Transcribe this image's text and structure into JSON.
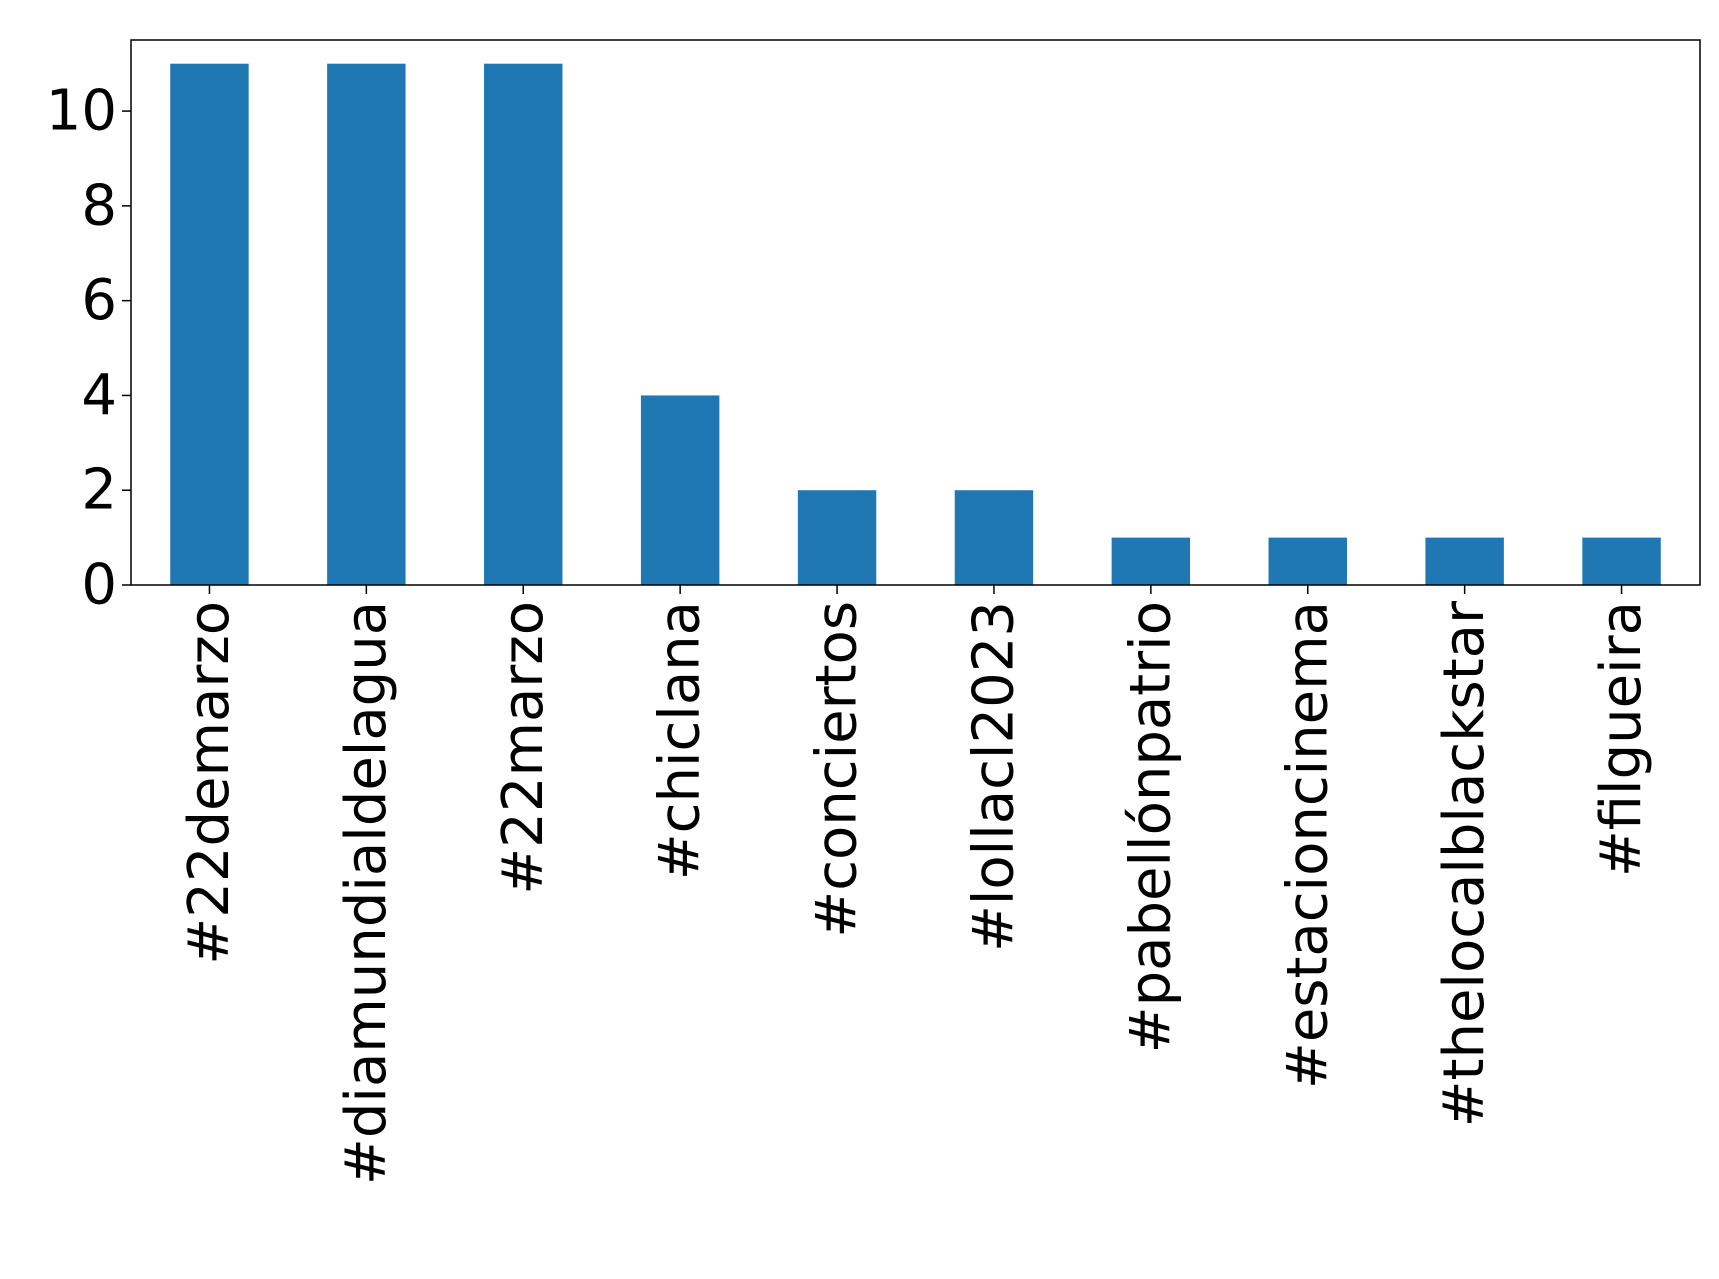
{
  "chart_data": {
    "type": "bar",
    "title": "",
    "xlabel": "",
    "ylabel": "",
    "categories": [
      "#22demarzo",
      "#diamundialdelagua",
      "#22marzo",
      "#chiclana",
      "#conciertos",
      "#lollacl2023",
      "#pabellónpatrio",
      "#estacioncinema",
      "#thelocalblackstar",
      "#filgueira"
    ],
    "values": [
      11,
      11,
      11,
      4,
      2,
      2,
      1,
      1,
      1,
      1
    ],
    "ylim": [
      0,
      11.5
    ],
    "yticks": [
      0,
      2,
      4,
      6,
      8,
      10
    ],
    "bar_color": "#1f77b4",
    "grid": false,
    "legend": "none"
  }
}
